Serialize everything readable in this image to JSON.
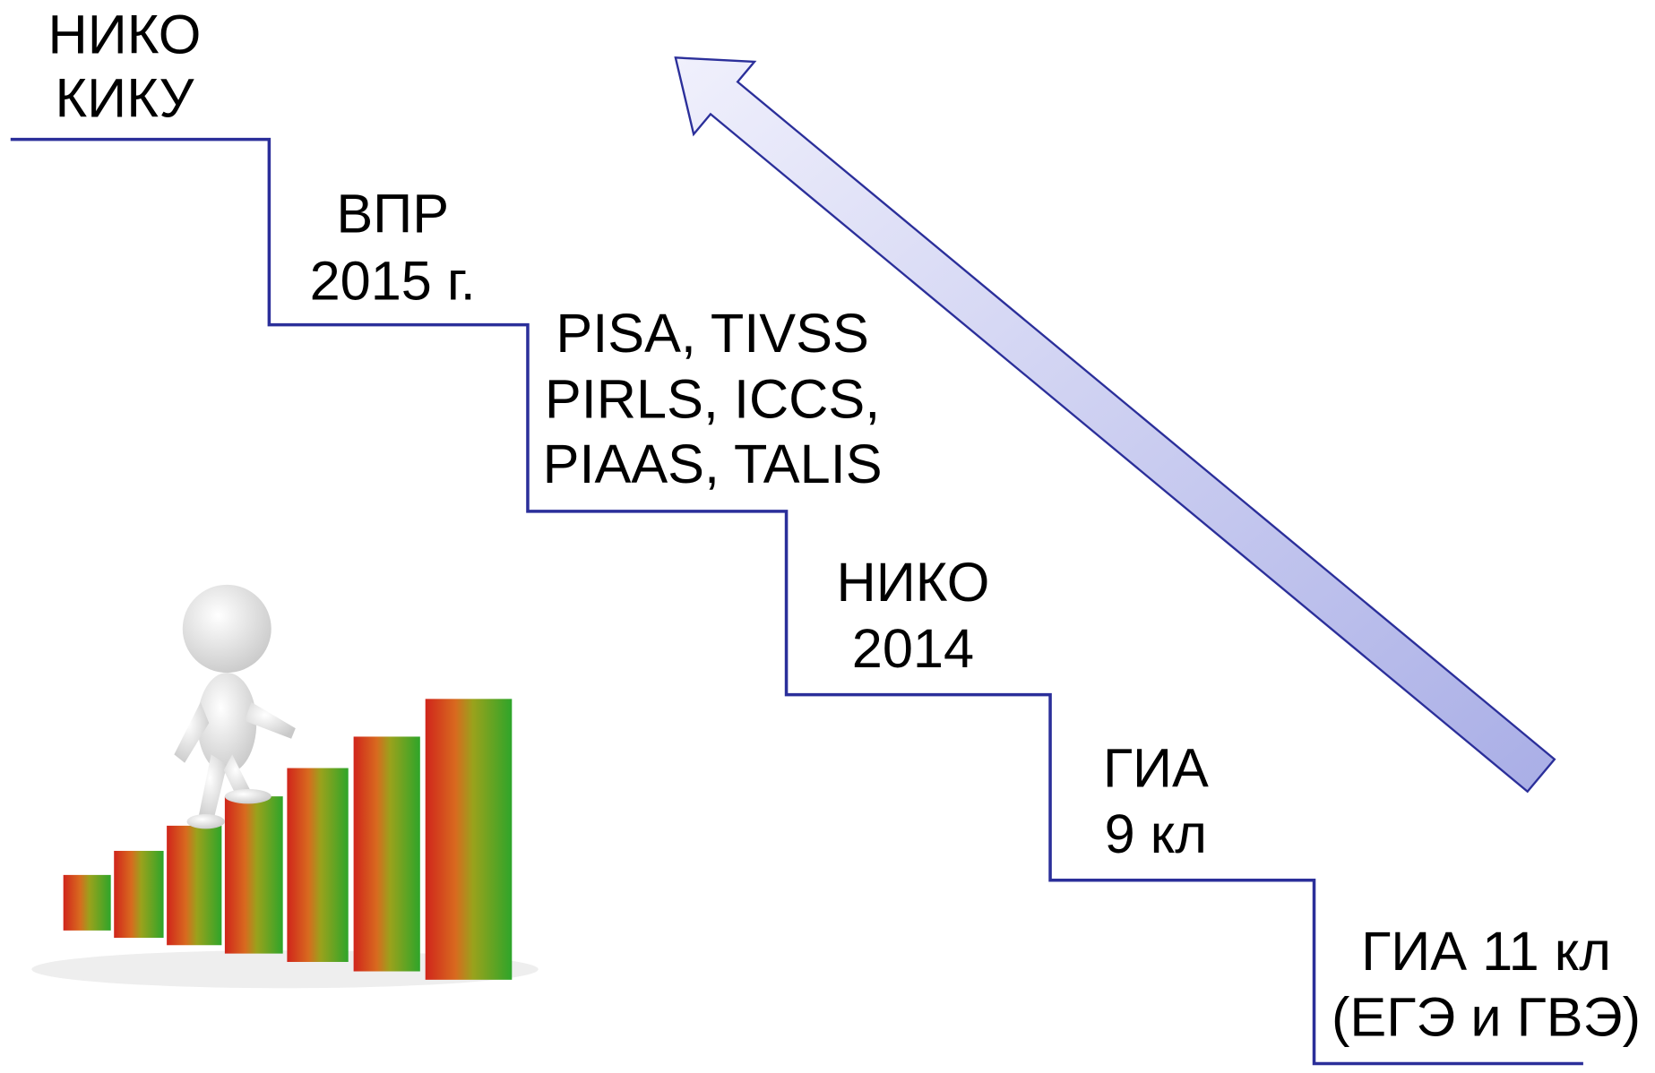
{
  "steps": [
    {
      "lines": [
        "НИКО",
        "КИКУ"
      ]
    },
    {
      "lines": [
        "ВПР",
        "2015 г."
      ]
    },
    {
      "lines": [
        "PISA, TIVSS",
        "PIRLS, ICCS,",
        "PIAAS, TALIS"
      ]
    },
    {
      "lines": [
        "НИКО",
        "2014"
      ]
    },
    {
      "lines": [
        "ГИА",
        "9 кл"
      ]
    },
    {
      "lines": [
        "ГИА 11 кл",
        "(ЕГЭ и ГВЭ)"
      ]
    }
  ]
}
